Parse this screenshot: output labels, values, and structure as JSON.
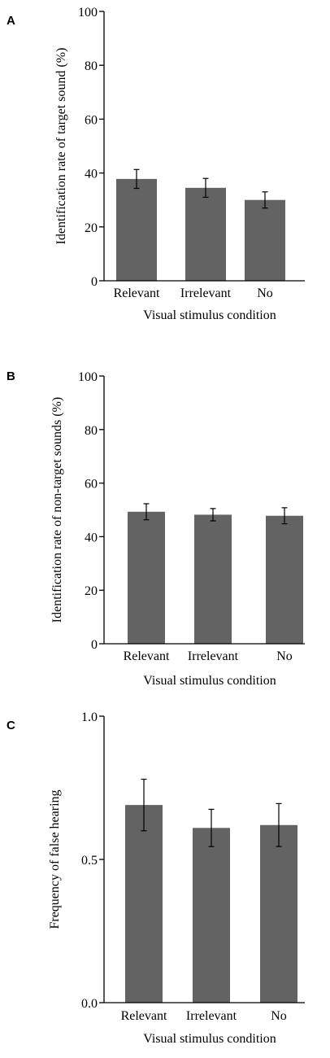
{
  "chart_data": [
    {
      "panel_label": "A",
      "type": "bar",
      "categories": [
        "Relevant",
        "Irrelevant",
        "No"
      ],
      "values": [
        37.8,
        34.5,
        30.0
      ],
      "error": [
        3.5,
        3.5,
        3.0
      ],
      "ylabel": "Identification rate of target sound (%)",
      "xlabel": "Visual stimulus condition",
      "ylim": [
        0,
        100
      ],
      "yticks": [
        "0",
        "20",
        "40",
        "60",
        "80",
        "100"
      ],
      "ytick_values": [
        0,
        20,
        40,
        60,
        80,
        100
      ],
      "bar_color": "#636363"
    },
    {
      "panel_label": "B",
      "type": "bar",
      "categories": [
        "Relevant",
        "Irrelevant",
        "No"
      ],
      "values": [
        49.3,
        48.2,
        47.8
      ],
      "error": [
        3.0,
        2.3,
        3.0
      ],
      "ylabel": "Identification rate of non-target sounds (%)",
      "xlabel": "Visual stimulus condition",
      "ylim": [
        0,
        100
      ],
      "yticks": [
        "0",
        "20",
        "40",
        "60",
        "80",
        "100"
      ],
      "ytick_values": [
        0,
        20,
        40,
        60,
        80,
        100
      ],
      "bar_color": "#636363"
    },
    {
      "panel_label": "C",
      "type": "bar",
      "categories": [
        "Relevant",
        "Irrelevant",
        "No"
      ],
      "values": [
        0.69,
        0.61,
        0.62
      ],
      "error": [
        0.09,
        0.065,
        0.075
      ],
      "ylabel": "Frequency of false hearing",
      "xlabel": "Visual stimulus condition",
      "ylim": [
        0,
        1.0
      ],
      "yticks": [
        "0.0",
        "0.5",
        "1.0"
      ],
      "ytick_values": [
        0,
        0.5,
        1.0
      ],
      "bar_color": "#636363"
    }
  ]
}
